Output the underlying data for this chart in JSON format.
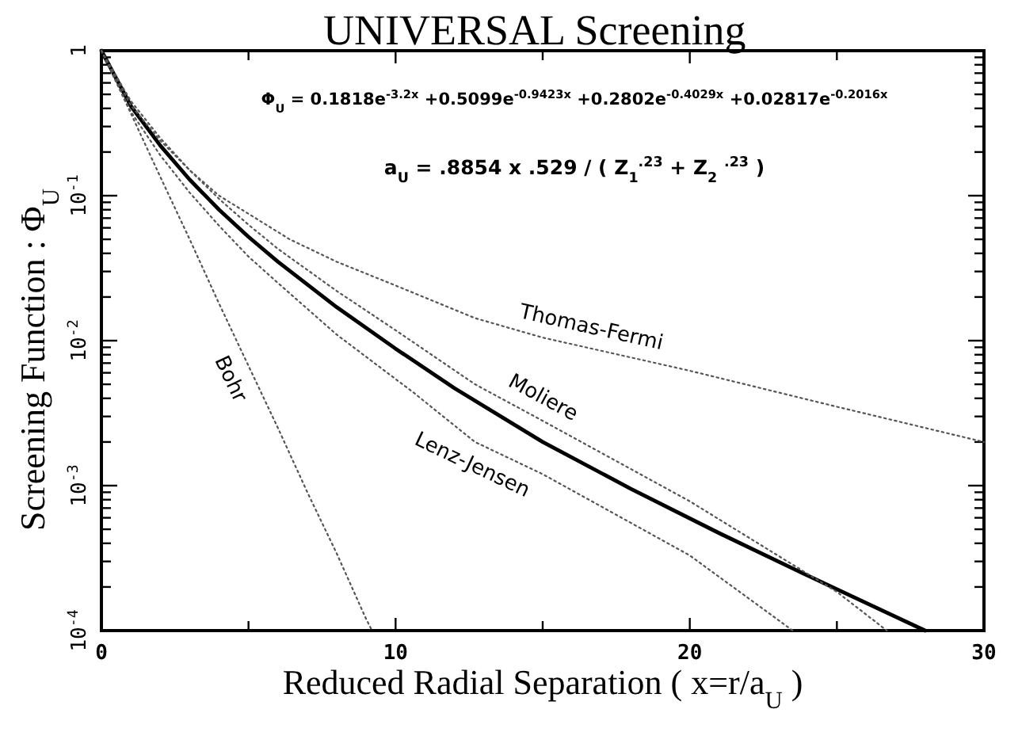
{
  "chart_data": {
    "type": "line",
    "title": "UNIVERSAL Screening",
    "xlabel": "Reduced Radial Separation ( x=r/a$_{U}$ )",
    "ylabel": "Screening Function : Φ$_{U}$",
    "annotations": [
      "Φ$_{U}$ = 0.1818e$^{-3.2x}$ +0.5099e$^{-0.9423x}$ +0.2802e$^{-0.4029x}$ +0.02817e$^{-0.2016x}$",
      "a$_{U}$ = .8854 x .529 / ( Z$_{1}$$^{.23}$ + Z$_{2}$ $^{.23}$ )"
    ],
    "log": "y",
    "xlim": [
      0,
      30
    ],
    "xticks": [
      0,
      10,
      20,
      30,
      {
        "value": 5,
        "label": null
      },
      {
        "value": 15,
        "label": null
      },
      {
        "value": 25,
        "label": null
      }
    ],
    "ylim": [
      0.0001,
      1
    ],
    "yticks": [
      {
        "value": 1,
        "label": "1"
      },
      {
        "value": 0.1,
        "label": "10$^{-1}$"
      },
      {
        "value": 0.01,
        "label": "10$^{-2}$"
      },
      {
        "value": 0.001,
        "label": "10$^{-3}$"
      },
      {
        "value": 0.0001,
        "label": "10$^{-4}$"
      },
      {
        "value": 0.2,
        "label": null
      },
      {
        "value": 0.3,
        "label": null
      },
      {
        "value": 0.4,
        "label": null
      },
      {
        "value": 0.5,
        "label": null
      },
      {
        "value": 0.6,
        "label": null
      },
      {
        "value": 0.7,
        "label": null
      },
      {
        "value": 0.8,
        "label": null
      },
      {
        "value": 0.9,
        "label": null
      },
      {
        "value": 0.02,
        "label": null
      },
      {
        "value": 0.03,
        "label": null
      },
      {
        "value": 0.04,
        "label": null
      },
      {
        "value": 0.05,
        "label": null
      },
      {
        "value": 0.06,
        "label": null
      },
      {
        "value": 0.07,
        "label": null
      },
      {
        "value": 0.08,
        "label": null
      },
      {
        "value": 0.09,
        "label": null
      },
      {
        "value": 0.002,
        "label": null
      },
      {
        "value": 0.003,
        "label": null
      },
      {
        "value": 0.004,
        "label": null
      },
      {
        "value": 0.005,
        "label": null
      },
      {
        "value": 0.006,
        "label": null
      },
      {
        "value": 0.007,
        "label": null
      },
      {
        "value": 0.008,
        "label": null
      },
      {
        "value": 0.009,
        "label": null
      },
      {
        "value": 0.0002,
        "label": null
      },
      {
        "value": 0.0003,
        "label": null
      },
      {
        "value": 0.0004,
        "label": null
      },
      {
        "value": 0.0005,
        "label": null
      },
      {
        "value": 0.0006,
        "label": null
      },
      {
        "value": 0.0007,
        "label": null
      },
      {
        "value": 0.0008,
        "label": null
      },
      {
        "value": 0.0009,
        "label": null
      }
    ],
    "series": [
      {
        "color": "#000000",
        "line_style": "solid",
        "x": [
          0,
          1,
          2,
          3,
          4,
          5,
          6,
          8,
          10,
          12,
          15,
          18,
          21,
          24,
          28
        ],
        "values": [
          1,
          0.416,
          0.222,
          0.129,
          0.08,
          0.052,
          0.035,
          0.017,
          0.0088,
          0.0047,
          0.002,
          0.00095,
          0.00047,
          0.00024,
          0.0001
        ]
      },
      {
        "name": "Thomas-Fermi",
        "color": "#555555",
        "line_style": "dotted",
        "x": [
          0,
          1,
          2,
          3,
          4,
          5,
          6.4,
          8,
          10,
          12.7,
          15,
          20,
          25,
          30
        ],
        "values": [
          1,
          0.42,
          0.24,
          0.15,
          0.1,
          0.075,
          0.05,
          0.035,
          0.024,
          0.0143,
          0.0105,
          0.0062,
          0.0035,
          0.002
        ]
      },
      {
        "name": "Moliere",
        "color": "#555555",
        "line_style": "dotted",
        "x": [
          0,
          1,
          2,
          3,
          4,
          5,
          6,
          8,
          10,
          12.7,
          15,
          20,
          25,
          26.7
        ],
        "values": [
          1,
          0.45,
          0.25,
          0.15,
          0.095,
          0.063,
          0.043,
          0.022,
          0.0118,
          0.005,
          0.0028,
          0.00078,
          0.000185,
          0.0001
        ]
      },
      {
        "name": "Lenz-Jensen",
        "color": "#555555",
        "line_style": "dotted",
        "x": [
          0,
          1,
          2,
          3,
          4,
          5,
          6,
          8,
          10.6,
          12.7,
          15,
          20,
          23.5
        ],
        "values": [
          1,
          0.38,
          0.19,
          0.105,
          0.062,
          0.038,
          0.025,
          0.011,
          0.0044,
          0.002,
          0.0012,
          0.00033,
          0.0001
        ]
      },
      {
        "name": "Bohr",
        "color": "#555555",
        "line_style": "dotted",
        "x": [
          0,
          1,
          2,
          3,
          4,
          5,
          6,
          7,
          8,
          9,
          9.2
        ],
        "values": [
          1,
          0.37,
          0.135,
          0.05,
          0.018,
          0.0067,
          0.0025,
          0.0009,
          0.00034,
          0.00012,
          0.0001
        ]
      }
    ]
  }
}
